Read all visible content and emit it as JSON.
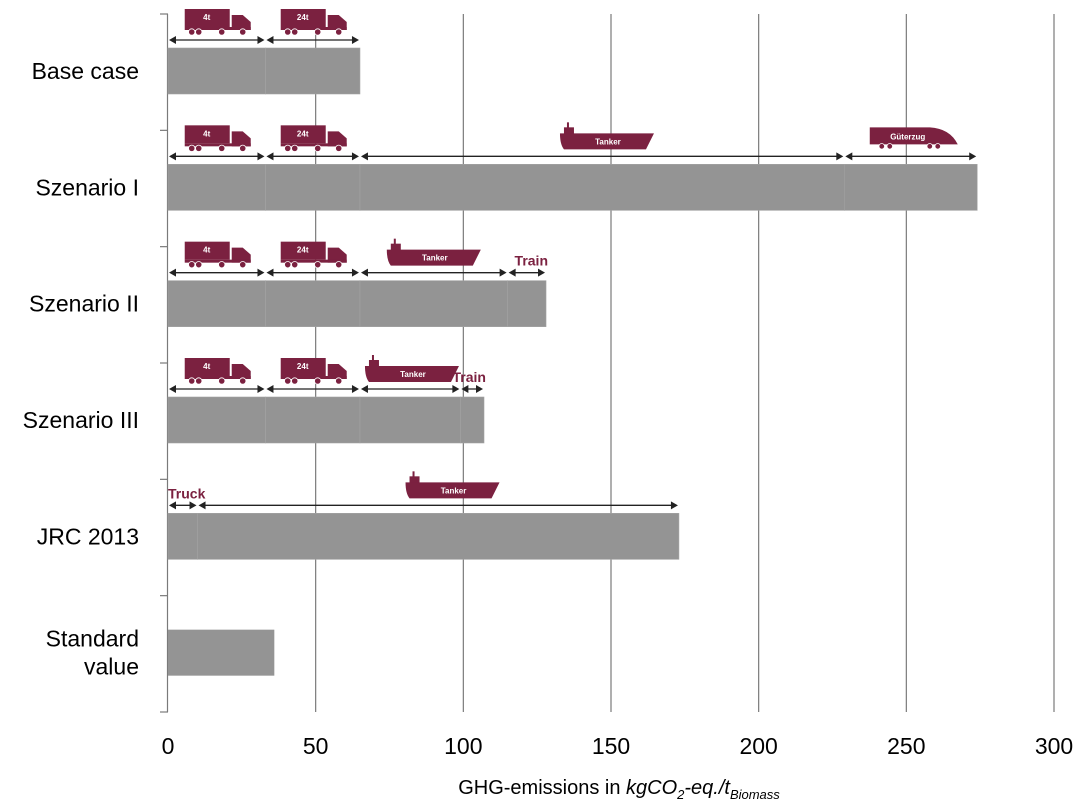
{
  "chart_data": {
    "type": "bar",
    "orientation": "horizontal",
    "title": "",
    "xlabel": {
      "prefix": "GHG-emissions in ",
      "unit_main": "kgCO",
      "unit_sub1": "2",
      "unit_mid": "-eq./t",
      "unit_sub2": "Biomass"
    },
    "xlim": [
      0,
      300
    ],
    "xticks": [
      0,
      50,
      100,
      150,
      200,
      250,
      300
    ],
    "grid": "vertical",
    "bar_color": "#949494",
    "accent_color": "#7b2140",
    "categories": [
      {
        "label": [
          "Base case"
        ],
        "value": 65,
        "segments": [
          {
            "from": 0,
            "to": 33,
            "icon": "truck-icon",
            "icon_text": "4t"
          },
          {
            "from": 33,
            "to": 65,
            "icon": "truck-icon",
            "icon_text": "24t"
          }
        ]
      },
      {
        "label": [
          "Szenario I"
        ],
        "value": 274,
        "segments": [
          {
            "from": 0,
            "to": 33,
            "icon": "truck-icon",
            "icon_text": "4t"
          },
          {
            "from": 33,
            "to": 65,
            "icon": "truck-icon",
            "icon_text": "24t"
          },
          {
            "from": 65,
            "to": 229,
            "icon": "ship-icon",
            "icon_text": "Tanker"
          },
          {
            "from": 229,
            "to": 274,
            "icon": "train-icon",
            "icon_text": "Güterzug"
          }
        ]
      },
      {
        "label": [
          "Szenario II"
        ],
        "value": 128,
        "segments": [
          {
            "from": 0,
            "to": 33,
            "icon": "truck-icon",
            "icon_text": "4t"
          },
          {
            "from": 33,
            "to": 65,
            "icon": "truck-icon",
            "icon_text": "24t"
          },
          {
            "from": 65,
            "to": 115,
            "icon": "ship-icon",
            "icon_text": "Tanker"
          },
          {
            "from": 115,
            "to": 128,
            "label": "Train"
          }
        ]
      },
      {
        "label": [
          "Szenario III"
        ],
        "value": 107,
        "segments": [
          {
            "from": 0,
            "to": 33,
            "icon": "truck-icon",
            "icon_text": "4t"
          },
          {
            "from": 33,
            "to": 65,
            "icon": "truck-icon",
            "icon_text": "24t"
          },
          {
            "from": 65,
            "to": 99,
            "icon": "ship-icon",
            "icon_text": "Tanker"
          },
          {
            "from": 99,
            "to": 107,
            "label": "Train"
          }
        ]
      },
      {
        "label": [
          "JRC 2013"
        ],
        "value": 173,
        "segments": [
          {
            "from": 0,
            "to": 10,
            "label": "Truck"
          },
          {
            "from": 10,
            "to": 173,
            "icon": "ship-icon",
            "icon_text": "Tanker"
          }
        ]
      },
      {
        "label": [
          "Standard",
          "value"
        ],
        "value": 36,
        "segments": []
      }
    ]
  }
}
